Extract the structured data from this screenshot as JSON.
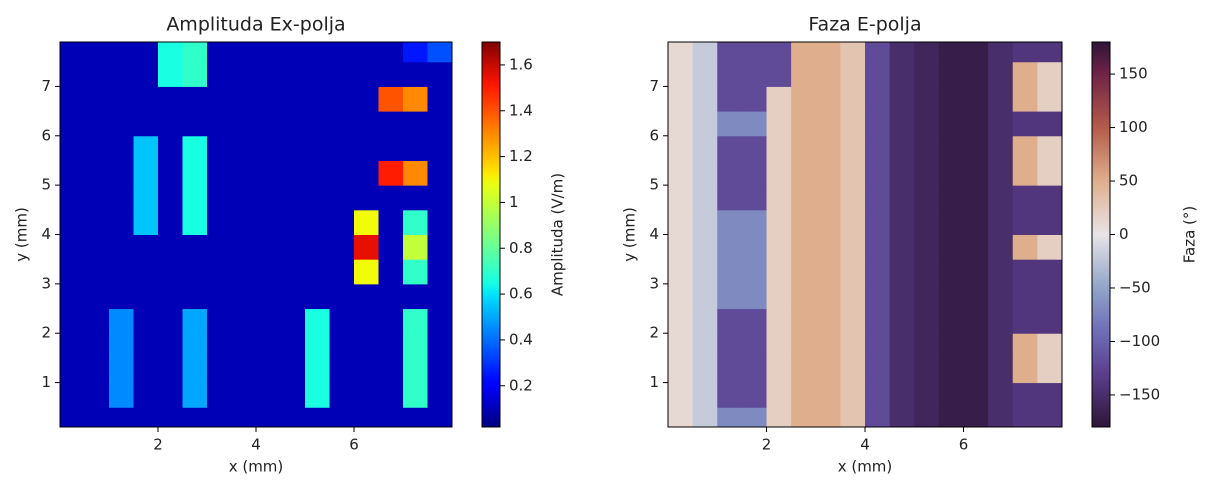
{
  "chart_data": [
    {
      "type": "heatmap",
      "title": "Amplituda Ex-polja",
      "xlabel": "x (mm)",
      "ylabel": "y (mm)",
      "colorbar_label": "Amplituda (V/m)",
      "colormap": "jet",
      "xlim": [
        0,
        8
      ],
      "ylim": [
        0.1,
        7.9
      ],
      "xticks": [
        2,
        4,
        6
      ],
      "yticks": [
        1,
        2,
        3,
        4,
        5,
        6,
        7
      ],
      "clim": [
        0.02,
        1.7
      ],
      "cticks": [
        0.2,
        0.4,
        0.6,
        0.8,
        1.0,
        1.2,
        1.4,
        1.6
      ],
      "x": [
        0.25,
        0.75,
        1.25,
        1.75,
        2.25,
        2.75,
        3.25,
        3.75,
        4.25,
        4.75,
        5.25,
        5.75,
        6.25,
        6.75,
        7.25,
        7.75
      ],
      "y": [
        0.25,
        0.75,
        1.25,
        1.75,
        2.25,
        2.75,
        3.25,
        3.75,
        4.25,
        4.75,
        5.25,
        5.75,
        6.25,
        6.75,
        7.25,
        7.75
      ],
      "z": [
        [
          0.1,
          0.1,
          0.1,
          0.1,
          0.1,
          0.1,
          0.1,
          0.1,
          0.1,
          0.1,
          0.1,
          0.1,
          0.1,
          0.1,
          0.1,
          0.1
        ],
        [
          0.1,
          0.1,
          0.45,
          0.1,
          0.1,
          0.5,
          0.1,
          0.1,
          0.1,
          0.1,
          0.65,
          0.1,
          0.1,
          0.1,
          0.7,
          0.1
        ],
        [
          0.1,
          0.1,
          0.45,
          0.1,
          0.1,
          0.5,
          0.1,
          0.1,
          0.1,
          0.1,
          0.65,
          0.1,
          0.1,
          0.1,
          0.7,
          0.1
        ],
        [
          0.1,
          0.1,
          0.45,
          0.1,
          0.1,
          0.5,
          0.1,
          0.1,
          0.1,
          0.1,
          0.65,
          0.1,
          0.1,
          0.1,
          0.7,
          0.1
        ],
        [
          0.1,
          0.1,
          0.45,
          0.1,
          0.1,
          0.5,
          0.1,
          0.1,
          0.1,
          0.1,
          0.65,
          0.1,
          0.1,
          0.1,
          0.7,
          0.1
        ],
        [
          0.1,
          0.1,
          0.1,
          0.1,
          0.1,
          0.1,
          0.1,
          0.1,
          0.1,
          0.1,
          0.1,
          0.1,
          0.1,
          0.1,
          0.1,
          0.1
        ],
        [
          0.1,
          0.1,
          0.1,
          0.1,
          0.1,
          0.1,
          0.1,
          0.1,
          0.1,
          0.1,
          0.1,
          0.1,
          1.1,
          0.1,
          0.7,
          0.1
        ],
        [
          0.1,
          0.1,
          0.1,
          0.1,
          0.1,
          0.1,
          0.1,
          0.1,
          0.1,
          0.1,
          0.1,
          0.1,
          1.55,
          0.1,
          1.0,
          0.1
        ],
        [
          0.1,
          0.1,
          0.1,
          0.55,
          0.1,
          0.65,
          0.1,
          0.1,
          0.1,
          0.1,
          0.1,
          0.1,
          1.1,
          0.1,
          0.7,
          0.1
        ],
        [
          0.1,
          0.1,
          0.1,
          0.55,
          0.1,
          0.65,
          0.1,
          0.1,
          0.1,
          0.1,
          0.1,
          0.1,
          0.1,
          0.1,
          0.1,
          0.1
        ],
        [
          0.1,
          0.1,
          0.1,
          0.55,
          0.1,
          0.65,
          0.1,
          0.1,
          0.1,
          0.1,
          0.1,
          0.1,
          0.1,
          1.5,
          1.3,
          0.1
        ],
        [
          0.1,
          0.1,
          0.1,
          0.55,
          0.1,
          0.65,
          0.1,
          0.1,
          0.1,
          0.1,
          0.1,
          0.1,
          0.1,
          0.1,
          0.1,
          0.1
        ],
        [
          0.1,
          0.1,
          0.1,
          0.1,
          0.1,
          0.1,
          0.1,
          0.1,
          0.1,
          0.1,
          0.1,
          0.1,
          0.1,
          0.1,
          0.1,
          0.1
        ],
        [
          0.1,
          0.1,
          0.1,
          0.1,
          0.1,
          0.1,
          0.1,
          0.1,
          0.1,
          0.1,
          0.1,
          0.1,
          0.1,
          1.4,
          1.3,
          0.1
        ],
        [
          0.1,
          0.1,
          0.1,
          0.1,
          0.65,
          0.7,
          0.1,
          0.1,
          0.1,
          0.1,
          0.1,
          0.1,
          0.1,
          0.1,
          0.1,
          0.1
        ],
        [
          0.1,
          0.1,
          0.1,
          0.1,
          0.65,
          0.7,
          0.1,
          0.1,
          0.1,
          0.1,
          0.1,
          0.1,
          0.1,
          0.1,
          0.25,
          0.35
        ]
      ]
    },
    {
      "type": "heatmap",
      "title": "Faza E-polja",
      "xlabel": "x (mm)",
      "ylabel": "y (mm)",
      "colorbar_label": "Faza (°)",
      "colormap": "twilight",
      "xlim": [
        0,
        8
      ],
      "ylim": [
        0.1,
        7.9
      ],
      "xticks": [
        2,
        4,
        6
      ],
      "yticks": [
        1,
        2,
        3,
        4,
        5,
        6,
        7
      ],
      "clim": [
        -180,
        180
      ],
      "cticks": [
        {
          "value": -150,
          "label": "−150"
        },
        {
          "value": -100,
          "label": "−100"
        },
        {
          "value": -50,
          "label": "−50"
        },
        0,
        50,
        100,
        150
      ],
      "x": [
        0.25,
        0.75,
        1.25,
        1.75,
        2.25,
        2.75,
        3.25,
        3.75,
        4.25,
        4.75,
        5.25,
        5.75,
        6.25,
        6.75,
        7.25,
        7.75
      ],
      "y": [
        0.25,
        0.75,
        1.25,
        1.75,
        2.25,
        2.75,
        3.25,
        3.75,
        4.25,
        4.75,
        5.25,
        5.75,
        6.25,
        6.75,
        7.25,
        7.75
      ],
      "z": [
        [
          10,
          -20,
          -70,
          -70,
          20,
          50,
          50,
          30,
          -120,
          -150,
          -160,
          -170,
          -170,
          -150,
          -140,
          -140
        ],
        [
          10,
          -20,
          -120,
          -120,
          20,
          50,
          50,
          30,
          -120,
          -150,
          -160,
          -170,
          -170,
          -150,
          -140,
          -140
        ],
        [
          10,
          -20,
          -120,
          -120,
          20,
          50,
          50,
          30,
          -120,
          -150,
          -160,
          -170,
          -170,
          -150,
          50,
          20
        ],
        [
          10,
          -20,
          -120,
          -120,
          20,
          50,
          50,
          30,
          -120,
          -150,
          -160,
          -170,
          -170,
          -150,
          50,
          20
        ],
        [
          10,
          -20,
          -120,
          -120,
          20,
          50,
          50,
          30,
          -120,
          -150,
          -160,
          -170,
          -170,
          -150,
          -140,
          -140
        ],
        [
          10,
          -20,
          -70,
          -70,
          20,
          50,
          50,
          30,
          -120,
          -150,
          -160,
          -170,
          -170,
          -150,
          -140,
          -140
        ],
        [
          10,
          -20,
          -70,
          -70,
          20,
          50,
          50,
          30,
          -120,
          -150,
          -160,
          -170,
          -170,
          -150,
          -140,
          -140
        ],
        [
          10,
          -20,
          -70,
          -70,
          20,
          50,
          50,
          30,
          -120,
          -150,
          -160,
          -170,
          -170,
          -150,
          50,
          20
        ],
        [
          10,
          -20,
          -70,
          -70,
          20,
          50,
          50,
          30,
          -120,
          -150,
          -160,
          -170,
          -170,
          -150,
          -140,
          -140
        ],
        [
          10,
          -20,
          -120,
          -120,
          20,
          50,
          50,
          30,
          -120,
          -150,
          -160,
          -170,
          -170,
          -150,
          -140,
          -140
        ],
        [
          10,
          -20,
          -120,
          -120,
          20,
          50,
          50,
          30,
          -120,
          -150,
          -160,
          -170,
          -170,
          -150,
          50,
          20
        ],
        [
          10,
          -20,
          -120,
          -120,
          20,
          50,
          50,
          30,
          -120,
          -150,
          -160,
          -170,
          -170,
          -150,
          50,
          20
        ],
        [
          10,
          -20,
          -70,
          -70,
          20,
          50,
          50,
          30,
          -120,
          -150,
          -160,
          -170,
          -170,
          -150,
          -140,
          -140
        ],
        [
          10,
          -20,
          -120,
          -120,
          20,
          50,
          50,
          30,
          -120,
          -150,
          -160,
          -170,
          -170,
          -150,
          50,
          20
        ],
        [
          10,
          -20,
          -120,
          -120,
          -120,
          50,
          50,
          30,
          -120,
          -150,
          -160,
          -170,
          -170,
          -150,
          50,
          20
        ],
        [
          10,
          -20,
          -120,
          -120,
          -120,
          50,
          50,
          30,
          -120,
          -150,
          -160,
          -170,
          -170,
          -150,
          -140,
          -140
        ]
      ]
    }
  ]
}
